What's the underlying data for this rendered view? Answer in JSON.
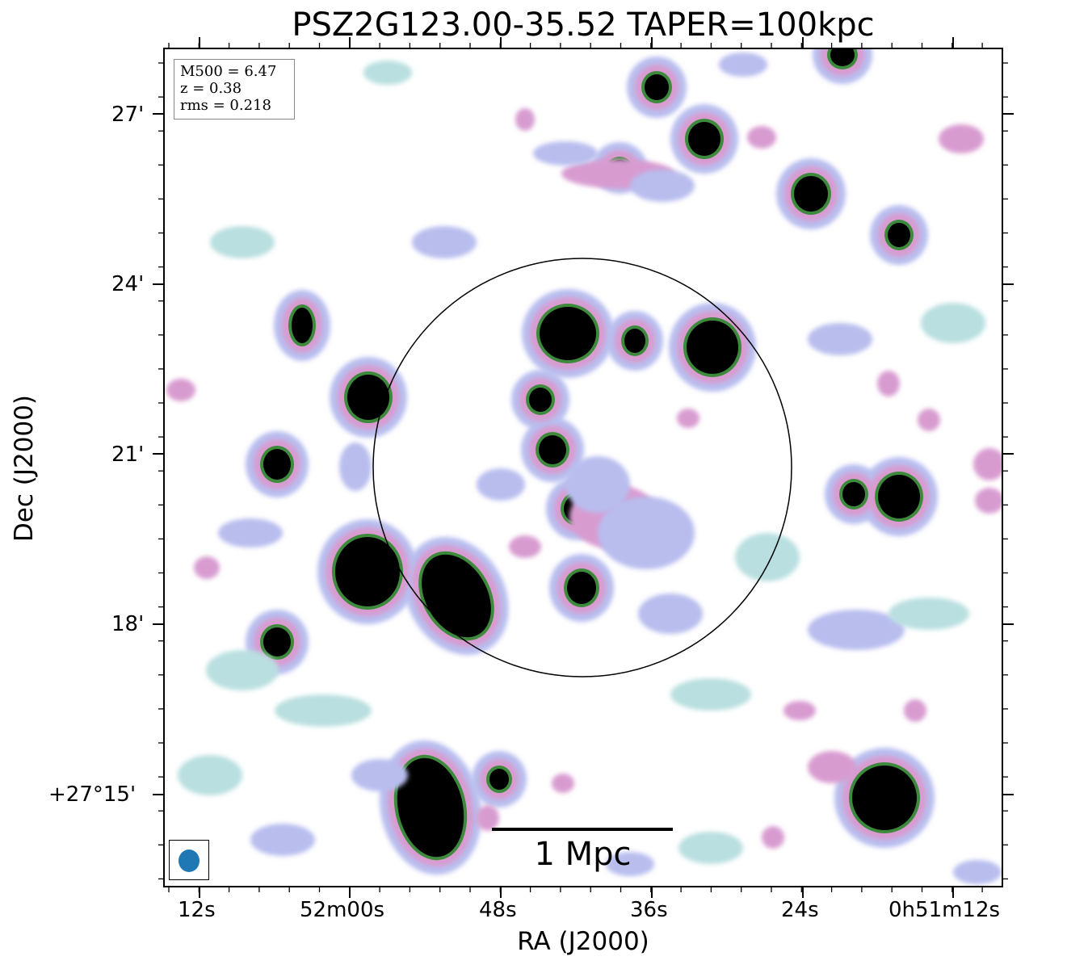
{
  "title": "PSZ2G123.00-35.52 TAPER=100kpc",
  "xlabel": "RA (J2000)",
  "ylabel": "Dec (J2000)",
  "info": {
    "m500": "M500 = 6.47",
    "z": "z = 0.38",
    "rms": "rms = 0.218"
  },
  "scale_bar": {
    "label": "1 Mpc"
  },
  "x_ticks": [
    "12s",
    "52m00s",
    "48s",
    "36s",
    "24s",
    "0h51m12s"
  ],
  "y_ticks": [
    "27'",
    "24'",
    "21'",
    "18'",
    "+27°15'"
  ],
  "colors": {
    "beam": "#1f77b4",
    "faint": "#b9dfe0",
    "low": "#b8bdee",
    "mid": "#d89bd0",
    "high": "#3d8a3c",
    "core": "#000000"
  }
}
